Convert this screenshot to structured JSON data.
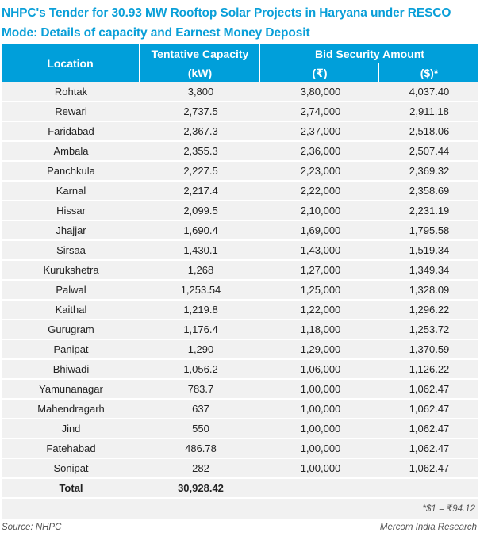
{
  "title": "NHPC's Tender for 30.93 MW Rooftop Solar Projects in Haryana under RESCO Mode: Details of capacity and Earnest Money Deposit",
  "header": {
    "location": "Location",
    "capacity": "Tentative Capacity",
    "capacity_unit": "(kW)",
    "bid_security": "Bid Security Amount",
    "inr_unit": "(₹)",
    "usd_unit": "($)*"
  },
  "colors": {
    "header_bg": "#009fda",
    "title": "#0a9fd8",
    "row_bg": "#f1f1f1"
  },
  "rows": [
    {
      "location": "Rohtak",
      "capacity": "3,800",
      "inr": "3,80,000",
      "usd": "4,037.40"
    },
    {
      "location": "Rewari",
      "capacity": "2,737.5",
      "inr": "2,74,000",
      "usd": "2,911.18"
    },
    {
      "location": "Faridabad",
      "capacity": "2,367.3",
      "inr": "2,37,000",
      "usd": "2,518.06"
    },
    {
      "location": "Ambala",
      "capacity": "2,355.3",
      "inr": "2,36,000",
      "usd": "2,507.44"
    },
    {
      "location": "Panchkula",
      "capacity": "2,227.5",
      "inr": "2,23,000",
      "usd": "2,369.32"
    },
    {
      "location": "Karnal",
      "capacity": "2,217.4",
      "inr": "2,22,000",
      "usd": "2,358.69"
    },
    {
      "location": "Hissar",
      "capacity": "2,099.5",
      "inr": "2,10,000",
      "usd": "2,231.19"
    },
    {
      "location": "Jhajjar",
      "capacity": "1,690.4",
      "inr": "1,69,000",
      "usd": "1,795.58"
    },
    {
      "location": "Sirsaa",
      "capacity": "1,430.1",
      "inr": "1,43,000",
      "usd": "1,519.34"
    },
    {
      "location": "Kurukshetra",
      "capacity": "1,268",
      "inr": "1,27,000",
      "usd": "1,349.34"
    },
    {
      "location": "Palwal",
      "capacity": "1,253.54",
      "inr": "1,25,000",
      "usd": "1,328.09"
    },
    {
      "location": "Kaithal",
      "capacity": "1,219.8",
      "inr": "1,22,000",
      "usd": "1,296.22"
    },
    {
      "location": "Gurugram",
      "capacity": "1,176.4",
      "inr": "1,18,000",
      "usd": "1,253.72"
    },
    {
      "location": "Panipat",
      "capacity": "1,290",
      "inr": "1,29,000",
      "usd": "1,370.59"
    },
    {
      "location": "Bhiwadi",
      "capacity": "1,056.2",
      "inr": "1,06,000",
      "usd": "1,126.22"
    },
    {
      "location": "Yamunanagar",
      "capacity": "783.7",
      "inr": "1,00,000",
      "usd": "1,062.47"
    },
    {
      "location": "Mahendragarh",
      "capacity": "637",
      "inr": "1,00,000",
      "usd": "1,062.47"
    },
    {
      "location": "Jind",
      "capacity": "550",
      "inr": "1,00,000",
      "usd": "1,062.47"
    },
    {
      "location": "Fatehabad",
      "capacity": "486.78",
      "inr": "1,00,000",
      "usd": "1,062.47"
    },
    {
      "location": "Sonipat",
      "capacity": "282",
      "inr": "1,00,000",
      "usd": "1,062.47"
    }
  ],
  "total": {
    "label": "Total",
    "capacity": "30,928.42"
  },
  "exchange_note": "*$1 = ₹94.12",
  "source": "Source: NHPC",
  "credit": "Mercom India Research"
}
